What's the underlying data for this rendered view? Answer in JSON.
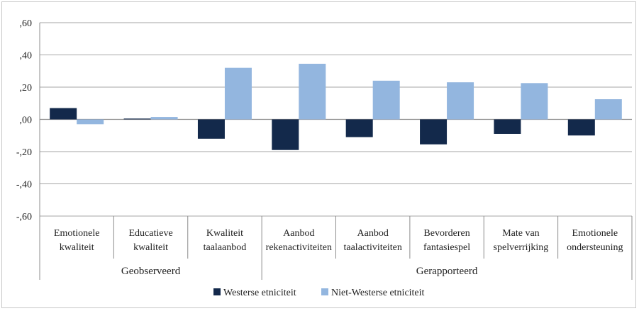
{
  "chart_data": {
    "type": "bar",
    "title": "",
    "xlabel": "",
    "ylabel": "",
    "ylim": [
      -0.6,
      0.6
    ],
    "yticks": [
      0.6,
      0.4,
      0.2,
      0.0,
      -0.2,
      -0.4,
      -0.6
    ],
    "ytick_labels": [
      ",60",
      ",40",
      ",20",
      ",00",
      "-,20",
      "-,40",
      "-,60"
    ],
    "grid": true,
    "legend_position": "bottom",
    "categories": [
      [
        "Emotionele",
        "kwaliteit"
      ],
      [
        "Educatieve",
        "kwaliteit"
      ],
      [
        "Kwaliteit",
        "taalaanbod"
      ],
      [
        "Aanbod",
        "rekenactiviteiten"
      ],
      [
        "Aanbod",
        "taalactiviteiten"
      ],
      [
        "Bevorderen",
        "fantasiespel"
      ],
      [
        "Mate van",
        "spelverrijking"
      ],
      [
        "Emotionele",
        "ondersteuning"
      ]
    ],
    "groups": [
      {
        "label": "Geobserveerd",
        "start": 0,
        "end": 2
      },
      {
        "label": "Gerapporteerd",
        "start": 3,
        "end": 7
      }
    ],
    "series": [
      {
        "name": "Westerse etniciteit",
        "color": "#13294b",
        "values": [
          0.07,
          0.005,
          -0.12,
          -0.19,
          -0.11,
          -0.155,
          -0.09,
          -0.1
        ]
      },
      {
        "name": "Niet-Westerse etniciteit",
        "color": "#93b6df",
        "values": [
          -0.03,
          0.015,
          0.32,
          0.345,
          0.24,
          0.23,
          0.225,
          0.125
        ]
      }
    ]
  }
}
